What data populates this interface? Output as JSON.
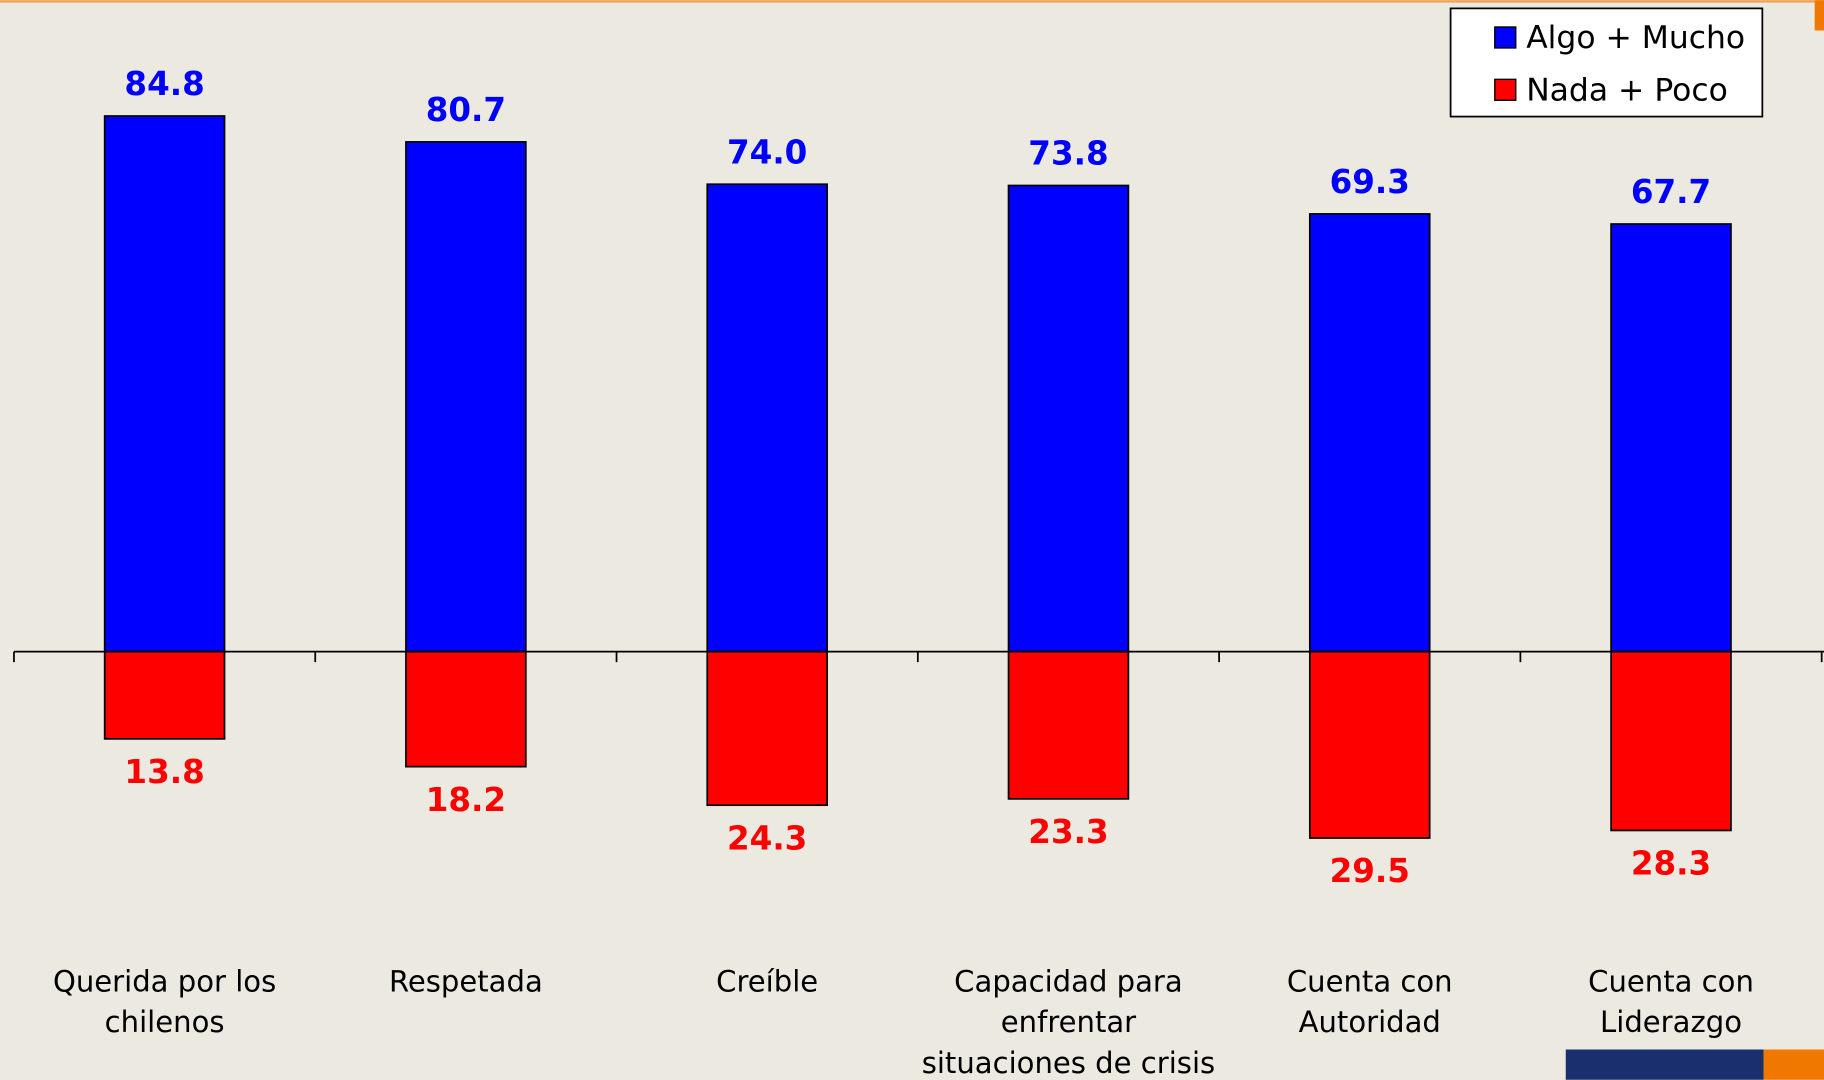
{
  "chart_data": {
    "type": "bar",
    "categories": [
      "Querida por los chilenos",
      "Respetada",
      "Creíble",
      "Capacidad para enfrentar situaciones de crisis",
      "Cuenta con Autoridad",
      "Cuenta con Liderazgo"
    ],
    "series": [
      {
        "name": "Algo + Mucho",
        "color": "#0000ff",
        "values": [
          84.8,
          80.7,
          74.0,
          73.8,
          69.3,
          67.7
        ],
        "value_labels": [
          "84.8",
          "80.7",
          "74.0",
          "73.8",
          "69.3",
          "67.7"
        ]
      },
      {
        "name": "Nada + Poco",
        "color": "#ff0000",
        "values": [
          13.8,
          18.2,
          24.3,
          23.3,
          29.5,
          28.3
        ],
        "value_labels": [
          "13.8",
          "18.2",
          "24.3",
          "23.3",
          "29.5",
          "28.3"
        ]
      }
    ],
    "legend": "top-right"
  }
}
